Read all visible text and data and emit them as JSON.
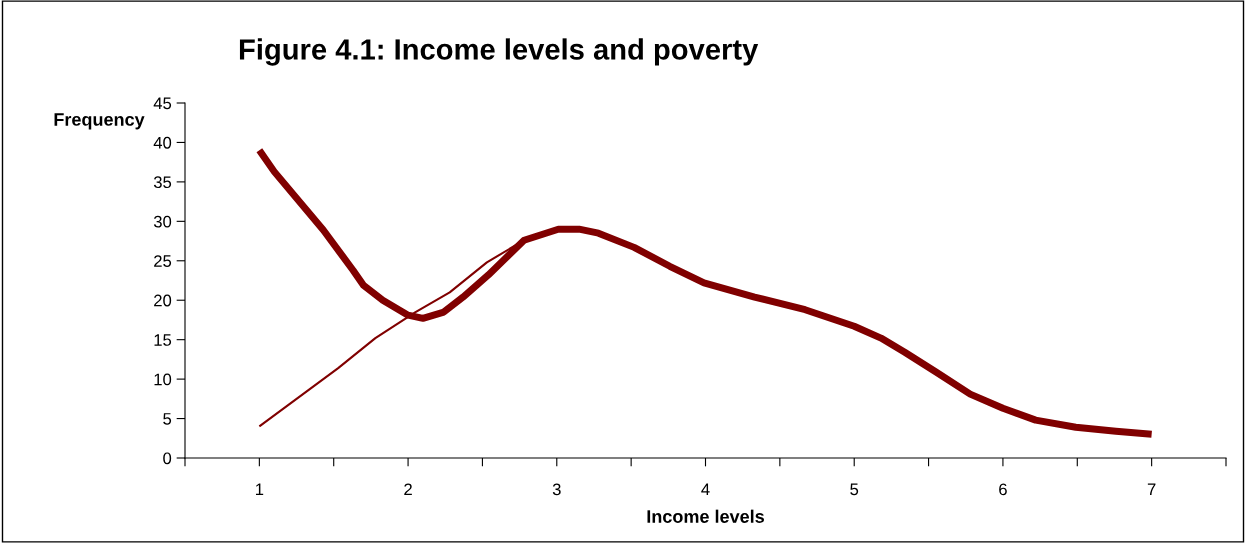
{
  "chart_data": {
    "type": "line",
    "title": "Figure 4.1: Income levels and poverty",
    "xlabel": "Income levels",
    "ylabel": "Frequency",
    "xlim": [
      0.5,
      7.5
    ],
    "ylim": [
      0,
      45
    ],
    "yticks": [
      0,
      5,
      10,
      15,
      20,
      25,
      30,
      35,
      40,
      45
    ],
    "xticks": [
      {
        "value": 0.5,
        "label": null
      },
      {
        "value": 1,
        "label": "1"
      },
      {
        "value": 1.5,
        "label": null
      },
      {
        "value": 2,
        "label": "2"
      },
      {
        "value": 2.5,
        "label": null
      },
      {
        "value": 3,
        "label": "3"
      },
      {
        "value": 3.5,
        "label": null
      },
      {
        "value": 4,
        "label": "4"
      },
      {
        "value": 4.5,
        "label": null
      },
      {
        "value": 5,
        "label": "5"
      },
      {
        "value": 5.5,
        "label": null
      },
      {
        "value": 6,
        "label": "6"
      },
      {
        "value": 6.5,
        "label": null
      },
      {
        "value": 7,
        "label": "7"
      },
      {
        "value": 7.5,
        "label": null
      }
    ],
    "grid": false,
    "legend": false,
    "marker": "none",
    "line_style": "solid",
    "series": [
      {
        "color": "#800000",
        "x": [
          1.0,
          1.53,
          1.78,
          2.05,
          2.28,
          2.53,
          2.78
        ],
        "values": [
          4.0,
          11.4,
          15.2,
          18.5,
          21.0,
          24.8,
          27.6
        ]
      },
      {
        "color": "#800000",
        "x": [
          1.0,
          1.1,
          1.43,
          1.63,
          1.7,
          1.83,
          2.0,
          2.1,
          2.24,
          2.37,
          2.54,
          2.78,
          3.01,
          3.15,
          3.28,
          3.52,
          3.76,
          3.99,
          4.33,
          4.67,
          5.0,
          5.18,
          5.34,
          5.55,
          5.78,
          6.0,
          6.22,
          6.49,
          6.76,
          7.0
        ],
        "values": [
          39.0,
          36.3,
          28.9,
          23.8,
          21.9,
          20.0,
          18.1,
          17.7,
          18.5,
          20.4,
          23.2,
          27.6,
          29.0,
          29.0,
          28.5,
          26.7,
          24.3,
          22.2,
          20.4,
          18.8,
          16.7,
          15.2,
          13.4,
          10.9,
          8.1,
          6.3,
          4.8,
          3.9,
          3.4,
          3.0
        ]
      }
    ]
  }
}
